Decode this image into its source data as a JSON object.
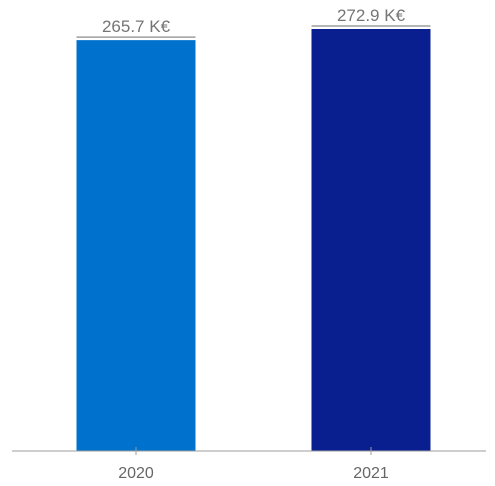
{
  "chart_data": {
    "type": "bar",
    "categories": [
      "2020",
      "2021"
    ],
    "values": [
      265.7,
      272.9
    ],
    "value_labels": [
      "265.7 K€",
      "272.9 K€"
    ],
    "unit": "K€",
    "title": "",
    "xlabel": "",
    "ylabel": "",
    "ylim": [
      0,
      272.9
    ],
    "grid": false,
    "legend": "none",
    "colors": [
      "#0071cc",
      "#0a1f8f"
    ],
    "axis_color": "#9e9e9e",
    "label_color": "#757575"
  }
}
